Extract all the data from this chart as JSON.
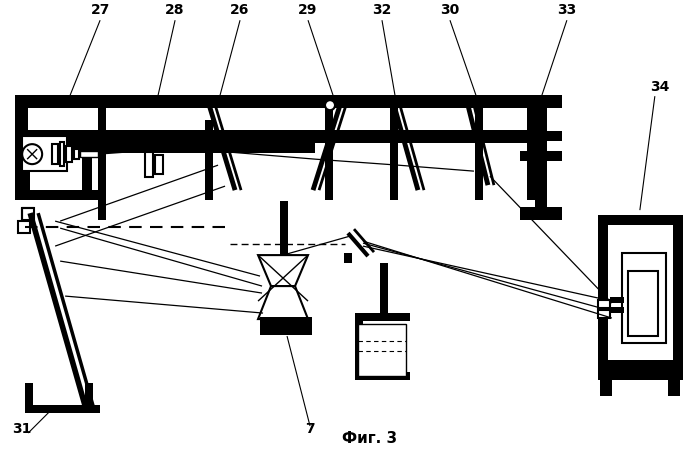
{
  "title": "Фиг. 3",
  "bg_color": "#ffffff",
  "line_color": "#000000"
}
